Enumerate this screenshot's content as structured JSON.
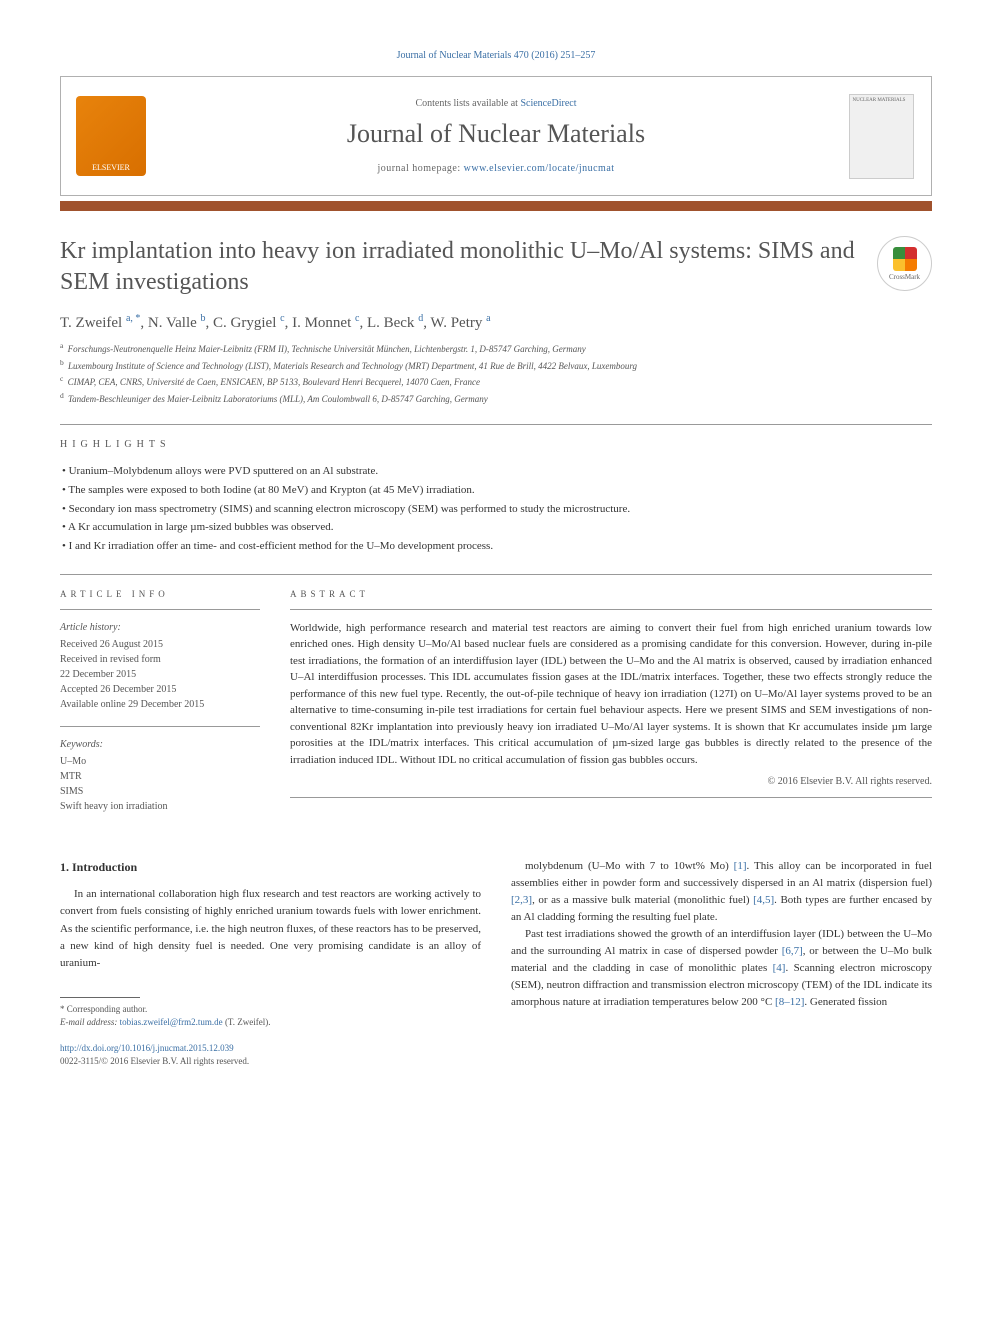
{
  "journal_ref": "Journal of Nuclear Materials 470 (2016) 251–257",
  "header": {
    "contents_prefix": "Contents lists available at ",
    "contents_link": "ScienceDirect",
    "journal_title": "Journal of Nuclear Materials",
    "homepage_prefix": "journal homepage: ",
    "homepage_link": "www.elsevier.com/locate/jnucmat",
    "publisher_logo": "ELSEVIER",
    "cover_label": "NUCLEAR MATERIALS"
  },
  "crossmark_label": "CrossMark",
  "article": {
    "title": "Kr implantation into heavy ion irradiated monolithic U–Mo/Al systems: SIMS and SEM investigations",
    "authors_html": "T. Zweifel <sup>a, *</sup>, N. Valle <sup>b</sup>, C. Grygiel <sup>c</sup>, I. Monnet <sup>c</sup>, L. Beck <sup>d</sup>, W. Petry <sup>a</sup>",
    "affiliations": [
      "a Forschungs-Neutronenquelle Heinz Maier-Leibnitz (FRM II), Technische Universität München, Lichtenbergstr. 1, D-85747 Garching, Germany",
      "b Luxembourg Institute of Science and Technology (LIST), Materials Research and Technology (MRT) Department, 41 Rue de Brill, 4422 Belvaux, Luxembourg",
      "c CIMAP, CEA, CNRS, Université de Caen, ENSICAEN, BP 5133, Boulevard Henri Becquerel, 14070 Caen, France",
      "d Tandem-Beschleuniger des Maier-Leibnitz Laboratoriums (MLL), Am Coulombwall 6, D-85747 Garching, Germany"
    ]
  },
  "highlights_heading": "HIGHLIGHTS",
  "highlights": [
    "Uranium–Molybdenum alloys were PVD sputtered on an Al substrate.",
    "The samples were exposed to both Iodine (at 80 MeV) and Krypton (at 45 MeV) irradiation.",
    "Secondary ion mass spectrometry (SIMS) and scanning electron microscopy (SEM) was performed to study the microstructure.",
    "A Kr accumulation in large µm-sized bubbles was observed.",
    "I and Kr irradiation offer an time- and cost-efficient method for the U–Mo development process."
  ],
  "article_info": {
    "heading": "ARTICLE INFO",
    "history_label": "Article history:",
    "history": [
      "Received 26 August 2015",
      "Received in revised form",
      "22 December 2015",
      "Accepted 26 December 2015",
      "Available online 29 December 2015"
    ],
    "keywords_label": "Keywords:",
    "keywords": [
      "U–Mo",
      "MTR",
      "SIMS",
      "Swift heavy ion irradiation"
    ]
  },
  "abstract": {
    "heading": "ABSTRACT",
    "text": "Worldwide, high performance research and material test reactors are aiming to convert their fuel from high enriched uranium towards low enriched ones. High density U–Mo/Al based nuclear fuels are considered as a promising candidate for this conversion. However, during in-pile test irradiations, the formation of an interdiffusion layer (IDL) between the U–Mo and the Al matrix is observed, caused by irradiation enhanced U–Al interdiffusion processes. This IDL accumulates fission gases at the IDL/matrix interfaces. Together, these two effects strongly reduce the performance of this new fuel type. Recently, the out-of-pile technique of heavy ion irradiation (127I) on U–Mo/Al layer systems proved to be an alternative to time-consuming in-pile test irradiations for certain fuel behaviour aspects. Here we present SIMS and SEM investigations of non-conventional 82Kr implantation into previously heavy ion irradiated U–Mo/Al layer systems. It is shown that Kr accumulates inside µm large porosities at the IDL/matrix interfaces. This critical accumulation of µm-sized large gas bubbles is directly related to the presence of the irradiation induced IDL. Without IDL no critical accumulation of fission gas bubbles occurs.",
    "copyright": "© 2016 Elsevier B.V. All rights reserved."
  },
  "intro": {
    "heading": "1. Introduction",
    "col1": "In an international collaboration high flux research and test reactors are working actively to convert from fuels consisting of highly enriched uranium towards fuels with lower enrichment. As the scientific performance, i.e. the high neutron fluxes, of these reactors has to be preserved, a new kind of high density fuel is needed. One very promising candidate is an alloy of uranium-",
    "col2_p1": "molybdenum (U–Mo with 7 to 10wt% Mo) [1]. This alloy can be incorporated in fuel assemblies either in powder form and successively dispersed in an Al matrix (dispersion fuel) [2,3], or as a massive bulk material (monolithic fuel) [4,5]. Both types are further encased by an Al cladding forming the resulting fuel plate.",
    "col2_p2": "Past test irradiations showed the growth of an interdiffusion layer (IDL) between the U–Mo and the surrounding Al matrix in case of dispersed powder [6,7], or between the U–Mo bulk material and the cladding in case of monolithic plates [4]. Scanning electron microscopy (SEM), neutron diffraction and transmission electron microscopy (TEM) of the IDL indicate its amorphous nature at irradiation temperatures below 200 °C [8–12]. Generated fission"
  },
  "footer": {
    "corr": "* Corresponding author.",
    "email_label": "E-mail address: ",
    "email": "tobias.zweifel@frm2.tum.de",
    "email_suffix": " (T. Zweifel).",
    "doi": "http://dx.doi.org/10.1016/j.jnucmat.2015.12.039",
    "issn": "0022-3115/© 2016 Elsevier B.V. All rights reserved."
  },
  "colors": {
    "link": "#3a6fa5",
    "bar": "#a0522d",
    "text": "#333333",
    "muted": "#555555"
  }
}
